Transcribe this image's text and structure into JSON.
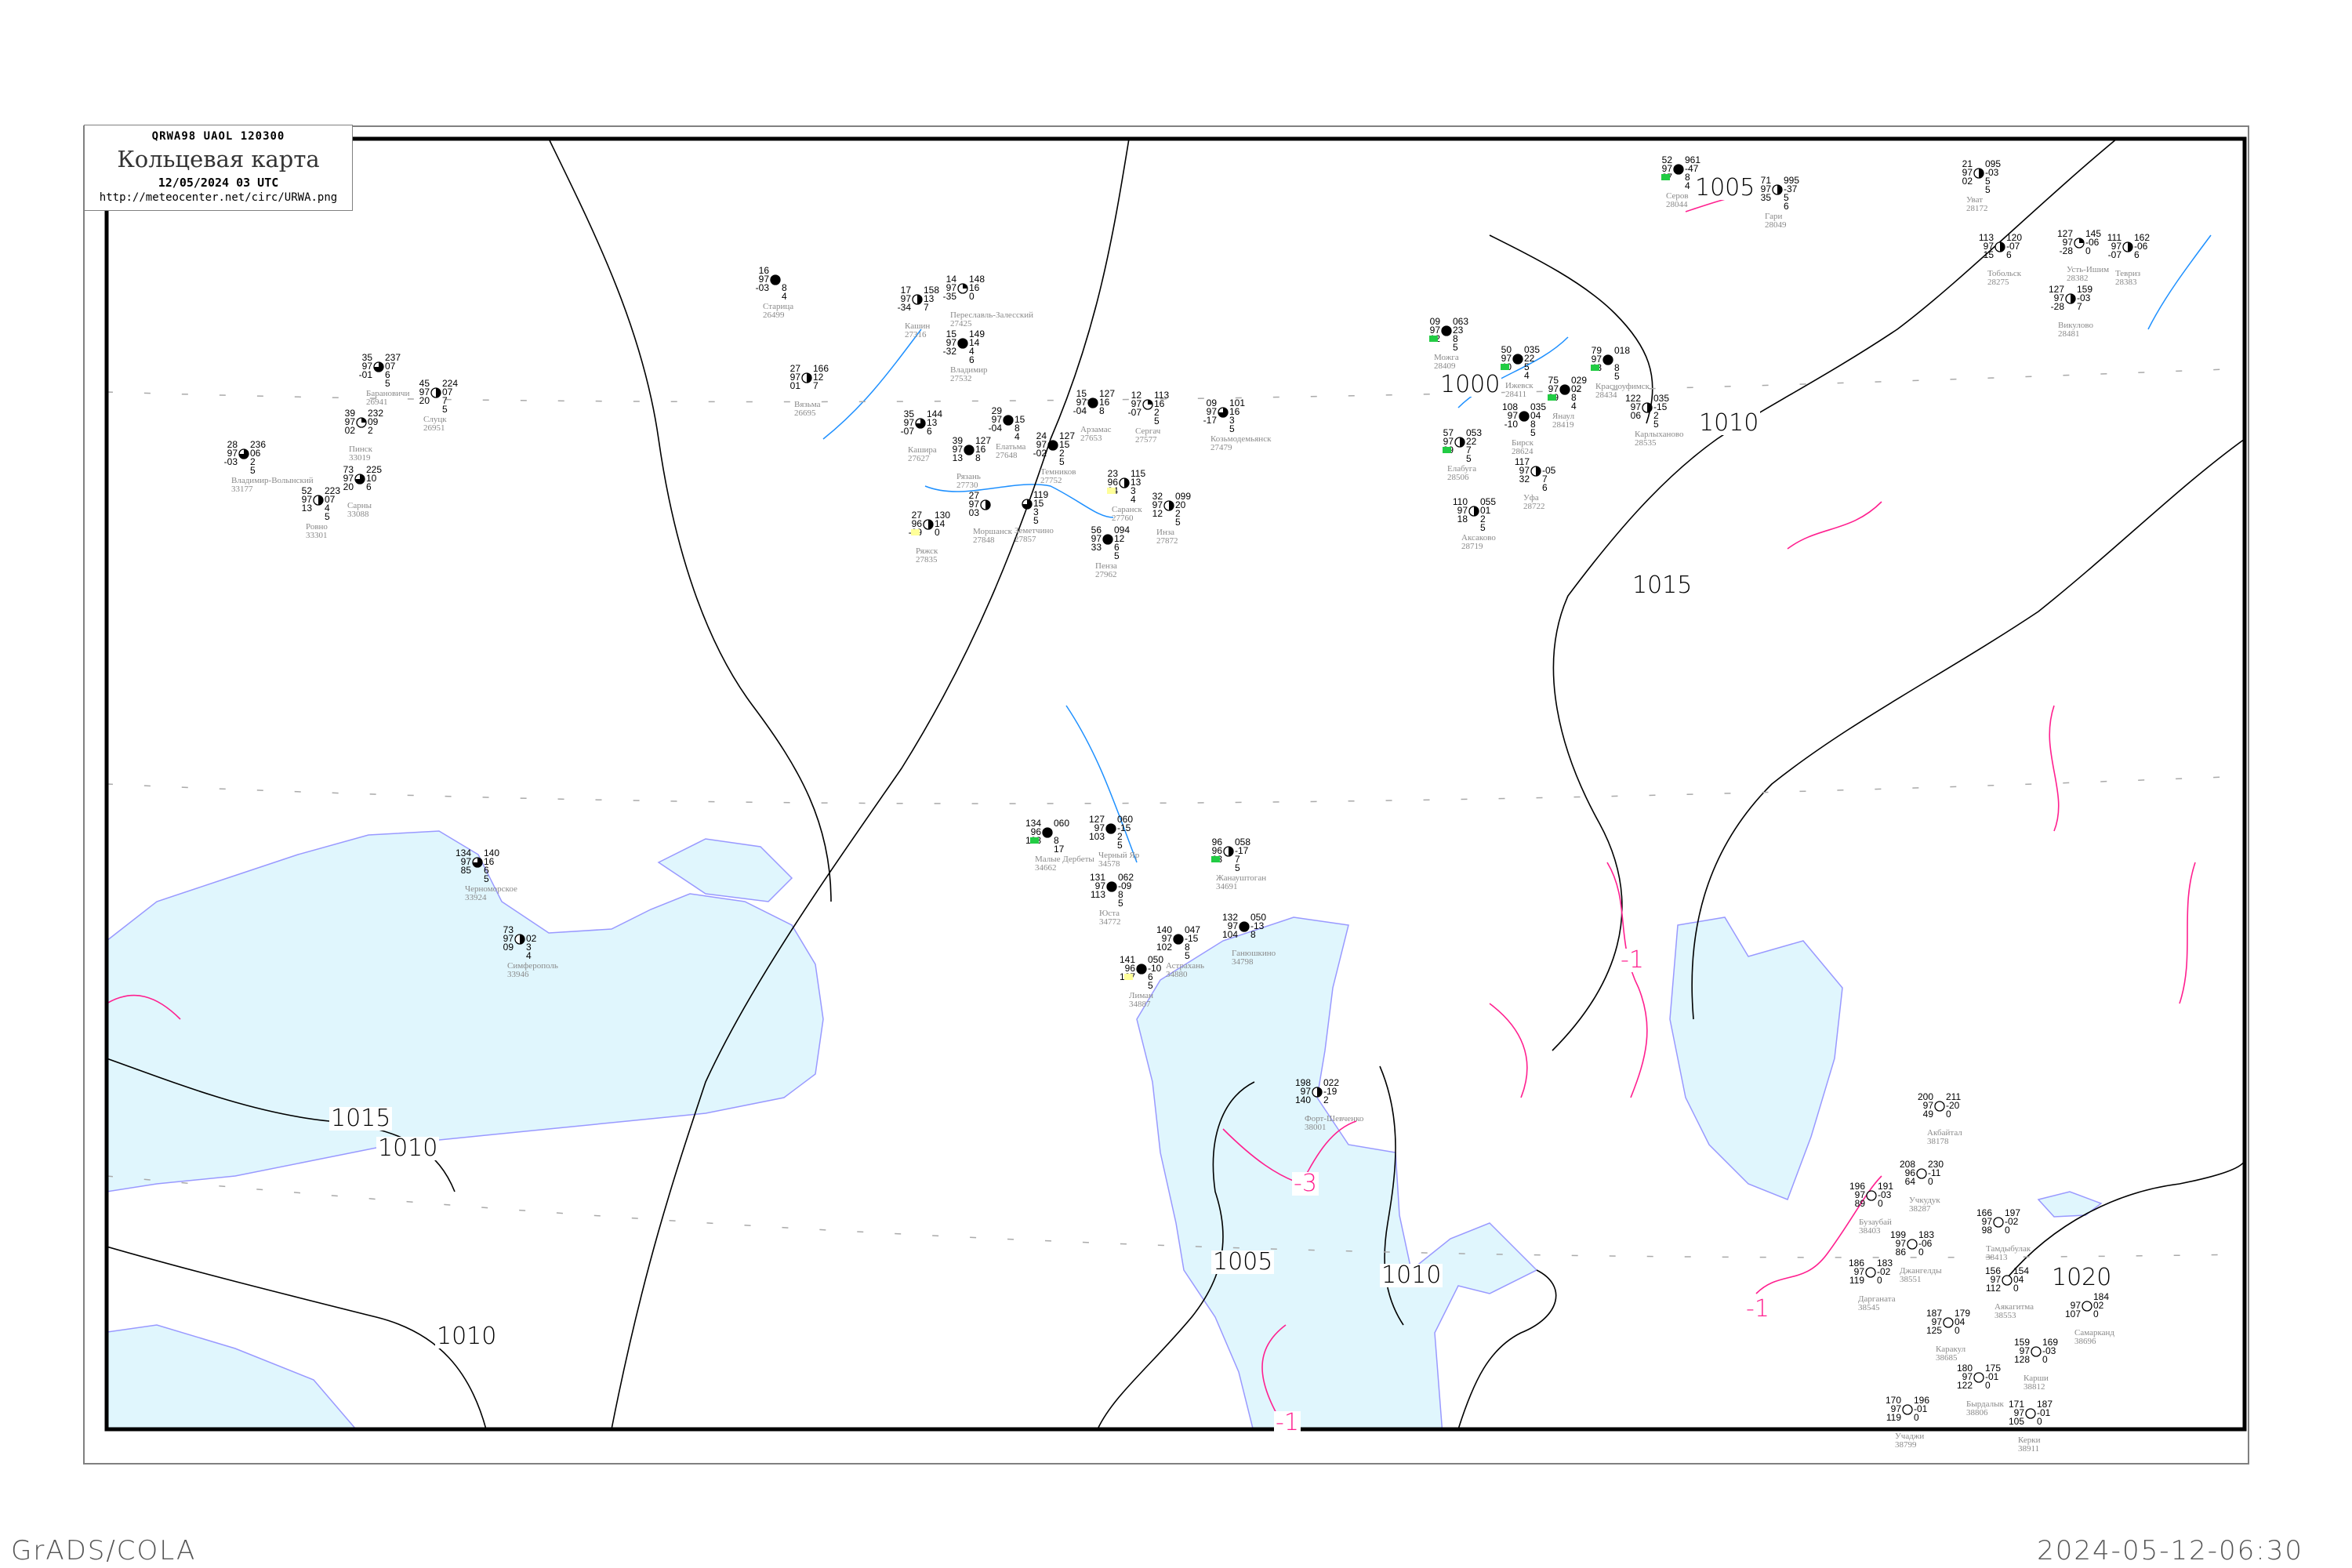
{
  "header": {
    "code": "QRWA98   UAOL   120300",
    "title": "Кольцевая карта",
    "date": "12/05/2024 03 UTC",
    "url": "http://meteocenter.net/circ/URWA.png"
  },
  "footer": {
    "left": "GrADS/COLA",
    "right": "2024-05-12-06:30"
  },
  "colors": {
    "sea": "#e0f6fd",
    "coast": "#9999ff",
    "river": "#1e90ff",
    "isobar": "#000000",
    "isallobar": "#ff1f8f",
    "station_name": "#8a8a8a",
    "precip_marker": "#22cc44",
    "fog_marker": "#ffff99"
  },
  "map": {
    "isobar_labels": [
      "1000",
      "1005",
      "1005",
      "1010",
      "1010",
      "1010",
      "1010",
      "1015",
      "1015",
      "1020"
    ],
    "isallobar_labels": [
      "-1",
      "-1",
      "-1",
      "-3"
    ]
  },
  "stations": [
    {
      "name": "Владимир",
      "id": "27532",
      "tl": "15",
      "ml": "97",
      "bl": "-32",
      "tr": "149",
      "mr": "14",
      "b1": "4",
      "b2": "6",
      "cover": 1
    },
    {
      "name": "Вязьма",
      "id": "26695",
      "tl": "27",
      "ml": "97",
      "bl": "01",
      "tr": "166",
      "mr": "12",
      "b1": "7",
      "b2": "",
      "cover": 0.5
    },
    {
      "name": "Старица",
      "id": "26499",
      "tl": "16",
      "ml": "97",
      "bl": "-03",
      "tr": "",
      "mr": "",
      "b1": "8",
      "b2": "4",
      "cover": 1
    },
    {
      "name": "Кашин",
      "id": "27316",
      "tl": "17",
      "ml": "97",
      "bl": "-34",
      "tr": "158",
      "mr": "13",
      "b1": "7",
      "b2": "",
      "cover": 0.5
    },
    {
      "name": "Переславль-Залесский",
      "id": "27425",
      "tl": "14",
      "ml": "97",
      "bl": "-35",
      "tr": "148",
      "mr": "16",
      "b1": "0",
      "b2": "",
      "cover": 0.25
    },
    {
      "name": "Кашира",
      "id": "27627",
      "tl": "35",
      "ml": "97",
      "bl": "-07",
      "tr": "144",
      "mr": "13",
      "b1": "6",
      "b2": "",
      "cover": 0.75
    },
    {
      "name": "Рязань",
      "id": "27730",
      "tl": "39",
      "ml": "97",
      "bl": "13",
      "tr": "127",
      "mr": "16",
      "b1": "8",
      "b2": "",
      "cover": 1
    },
    {
      "name": "Елатьма",
      "id": "27648",
      "tl": "29",
      "ml": "97",
      "bl": "-04",
      "tr": "",
      "mr": "15",
      "b1": "8",
      "b2": "4",
      "cover": 1
    },
    {
      "name": "Темников",
      "id": "27752",
      "tl": "24",
      "ml": "97",
      "bl": "-02",
      "tr": "127",
      "mr": "15",
      "b1": "2",
      "b2": "5",
      "cover": 1
    },
    {
      "name": "Арзамас",
      "id": "27653",
      "tl": "15",
      "ml": "97",
      "bl": "-04",
      "tr": "127",
      "mr": "16",
      "b1": "8",
      "b2": "",
      "cover": 1
    },
    {
      "name": "Сергач",
      "id": "27577",
      "tl": "12",
      "ml": "97",
      "bl": "-07",
      "tr": "113",
      "mr": "16",
      "b1": "2",
      "b2": "5",
      "cover": 0.25
    },
    {
      "name": "Козьмодемьянск",
      "id": "27479",
      "tl": "09",
      "ml": "97",
      "bl": "-17",
      "tr": "101",
      "mr": "16",
      "b1": "3",
      "b2": "5",
      "cover": 0.75
    },
    {
      "name": "Моршанск",
      "id": "27848",
      "tl": "27",
      "ml": "97",
      "bl": "03",
      "tr": "",
      "mr": "",
      "b1": "",
      "b2": "",
      "cover": 0.5
    },
    {
      "name": "Земетчино",
      "id": "27857",
      "tl": "",
      "ml": "",
      "bl": "",
      "tr": "119",
      "mr": "15",
      "b1": "3",
      "b2": "5",
      "cover": 0.75
    },
    {
      "name": "Саранск",
      "id": "27760",
      "tl": "23",
      "ml": "96",
      "bl": "04",
      "tr": "115",
      "mr": "13",
      "b1": "3",
      "b2": "4",
      "cover": 0.5,
      "marker": "fog"
    },
    {
      "name": "Инза",
      "id": "27872",
      "tl": "32",
      "ml": "97",
      "bl": "12",
      "tr": "099",
      "mr": "20",
      "b1": "2",
      "b2": "5",
      "cover": 0.5
    },
    {
      "name": "Пенза",
      "id": "27962",
      "tl": "56",
      "ml": "97",
      "bl": "33",
      "tr": "094",
      "mr": "12",
      "b1": "6",
      "b2": "5",
      "cover": 1
    },
    {
      "name": "Ряжск",
      "id": "27835",
      "tl": "27",
      "ml": "96",
      "bl": "-09",
      "tr": "130",
      "mr": "14",
      "b1": "0",
      "b2": "",
      "cover": 0.5,
      "marker": "fog"
    },
    {
      "name": "Уфа",
      "id": "28722",
      "tl": "117",
      "ml": "97",
      "bl": "32",
      "tr": "",
      "mr": "-05",
      "b1": "7",
      "b2": "6",
      "cover": 0.5
    },
    {
      "name": "Бирск",
      "id": "28624",
      "tl": "108",
      "ml": "97",
      "bl": "-10",
      "tr": "035",
      "mr": "04",
      "b1": "8",
      "b2": "5",
      "cover": 1
    },
    {
      "name": "Янаул",
      "id": "28419",
      "tl": "75",
      "ml": "97",
      "bl": "39",
      "tr": "029",
      "mr": "02",
      "b1": "8",
      "b2": "4",
      "cover": 1,
      "marker": "precip"
    },
    {
      "name": "Красноуфимск",
      "id": "28434",
      "tl": "79",
      "ml": "97",
      "bl": "43",
      "tr": "018",
      "mr": "",
      "b1": "8",
      "b2": "5",
      "cover": 1,
      "marker": "precip"
    },
    {
      "name": "Карлыханово",
      "id": "28535",
      "tl": "122",
      "ml": "97",
      "bl": "06",
      "tr": "035",
      "mr": "-15",
      "b1": "2",
      "b2": "5",
      "cover": 0.5
    },
    {
      "name": "Елабуга",
      "id": "28506",
      "tl": "57",
      "ml": "97",
      "bl": "39",
      "tr": "053",
      "mr": "22",
      "b1": "7",
      "b2": "5",
      "cover": 0.5,
      "marker": "precip"
    },
    {
      "name": "Можга",
      "id": "28409",
      "tl": "09",
      "ml": "97",
      "bl": "12",
      "tr": "063",
      "mr": "23",
      "b1": "8",
      "b2": "5",
      "cover": 1,
      "marker": "precip"
    },
    {
      "name": "Ижевск",
      "id": "28411",
      "tl": "50",
      "ml": "97",
      "bl": "40",
      "tr": "035",
      "mr": "22",
      "b1": "5",
      "b2": "4",
      "cover": 1,
      "marker": "precip"
    },
    {
      "name": "Аксаково",
      "id": "28719",
      "tl": "110",
      "ml": "97",
      "bl": "18",
      "tr": "055",
      "mr": "01",
      "b1": "2",
      "b2": "5",
      "cover": 0.5
    },
    {
      "name": "Серов",
      "id": "28044",
      "tl": "52",
      "ml": "97",
      "bl": "27",
      "tr": "961",
      "mr": "-47",
      "b1": "8",
      "b2": "4",
      "cover": 1,
      "marker": "precip"
    },
    {
      "name": "Гари",
      "id": "28049",
      "tl": "71",
      "ml": "97",
      "bl": "35",
      "tr": "995",
      "mr": "-37",
      "b1": "5",
      "b2": "6",
      "cover": 0.5
    },
    {
      "name": "Уват",
      "id": "28172",
      "tl": "21",
      "ml": "97",
      "bl": "02",
      "tr": "095",
      "mr": "-03",
      "b1": "5",
      "b2": "5",
      "cover": 0.5
    },
    {
      "name": "Тобольск",
      "id": "28275",
      "tl": "113",
      "ml": "97",
      "bl": "15",
      "tr": "120",
      "mr": "-07",
      "b1": "6",
      "b2": "",
      "cover": 0.5
    },
    {
      "name": "Усть-Ишим",
      "id": "28382",
      "tl": "127",
      "ml": "97",
      "bl": "-28",
      "tr": "145",
      "mr": "-06",
      "b1": "0",
      "b2": "",
      "cover": 0.25
    },
    {
      "name": "Тевриз",
      "id": "28383",
      "tl": "111",
      "ml": "97",
      "bl": "-07",
      "tr": "162",
      "mr": "-06",
      "b1": "6",
      "b2": "",
      "cover": 0.5
    },
    {
      "name": "Викулово",
      "id": "28481",
      "tl": "127",
      "ml": "97",
      "bl": "-28",
      "tr": "159",
      "mr": "-03",
      "b1": "7",
      "b2": "",
      "cover": 0.5
    },
    {
      "name": "Черноморское",
      "id": "33924",
      "tl": "134",
      "ml": "97",
      "bl": "85",
      "tr": "140",
      "mr": "16",
      "b1": "6",
      "b2": "5",
      "cover": 0.75
    },
    {
      "name": "Симферополь",
      "id": "33946",
      "tl": "73",
      "ml": "97",
      "bl": "09",
      "tr": "",
      "mr": "02",
      "b1": "3",
      "b2": "4",
      "cover": 0.5
    },
    {
      "name": "Форт-Шевченко",
      "id": "38001",
      "tl": "198",
      "ml": "97",
      "bl": "140",
      "tr": "022",
      "mr": "-19",
      "b1": "2",
      "b2": "",
      "cover": 0.5
    },
    {
      "name": "Акбайтал",
      "id": "38178",
      "tl": "200",
      "ml": "97",
      "bl": "49",
      "tr": "211",
      "mr": "-20",
      "b1": "0",
      "b2": "",
      "cover": 0
    },
    {
      "name": "Учкудук",
      "id": "38287",
      "tl": "208",
      "ml": "96",
      "bl": "64",
      "tr": "230",
      "mr": "-11",
      "b1": "0",
      "b2": "",
      "cover": 0
    },
    {
      "name": "Бузаубай",
      "id": "38403",
      "tl": "196",
      "ml": "97",
      "bl": "89",
      "tr": "191",
      "mr": "-03",
      "b1": "0",
      "b2": "",
      "cover": 0
    },
    {
      "name": "Джангелды",
      "id": "38551",
      "tl": "199",
      "ml": "97",
      "bl": "86",
      "tr": "183",
      "mr": "-06",
      "b1": "0",
      "b2": "",
      "cover": 0
    },
    {
      "name": "Тамдыбулак",
      "id": "38413",
      "tl": "166",
      "ml": "97",
      "bl": "98",
      "tr": "197",
      "mr": "-02",
      "b1": "0",
      "b2": "",
      "cover": 0
    },
    {
      "name": "Аякагитма",
      "id": "38553",
      "tl": "156",
      "ml": "97",
      "bl": "112",
      "tr": "154",
      "mr": "04",
      "b1": "0",
      "b2": "",
      "cover": 0
    },
    {
      "name": "Дарганата",
      "id": "38545",
      "tl": "186",
      "ml": "97",
      "bl": "119",
      "tr": "183",
      "mr": "-02",
      "b1": "0",
      "b2": "",
      "cover": 0
    },
    {
      "name": "Каракул",
      "id": "38685",
      "tl": "187",
      "ml": "97",
      "bl": "125",
      "tr": "179",
      "mr": "04",
      "b1": "0",
      "b2": "",
      "cover": 0
    },
    {
      "name": "Карши",
      "id": "38812",
      "tl": "159",
      "ml": "97",
      "bl": "128",
      "tr": "169",
      "mr": "-03",
      "b1": "0",
      "b2": "",
      "cover": 0
    },
    {
      "name": "Бырдалык",
      "id": "38806",
      "tl": "180",
      "ml": "97",
      "bl": "122",
      "tr": "175",
      "mr": "-01",
      "b1": "0",
      "b2": "",
      "cover": 0
    },
    {
      "name": "Учаджи",
      "id": "38799",
      "tl": "170",
      "ml": "97",
      "bl": "119",
      "tr": "196",
      "mr": "-01",
      "b1": "0",
      "b2": "",
      "cover": 0
    },
    {
      "name": "Керки",
      "id": "38911",
      "tl": "171",
      "ml": "97",
      "bl": "105",
      "tr": "187",
      "mr": "-01",
      "b1": "0",
      "b2": "",
      "cover": 0
    },
    {
      "name": "Самарканд",
      "id": "38696",
      "tl": "",
      "ml": "97",
      "bl": "107",
      "tr": "184",
      "mr": "02",
      "b1": "0",
      "b2": "",
      "cover": 0
    },
    {
      "name": "Барановичи",
      "id": "26941",
      "tl": "35",
      "ml": "97",
      "bl": "-01",
      "tr": "237",
      "mr": "07",
      "b1": "6",
      "b2": "5",
      "cover": 0.75
    },
    {
      "name": "Слуцк",
      "id": "26951",
      "tl": "45",
      "ml": "97",
      "bl": "20",
      "tr": "224",
      "mr": "07",
      "b1": "7",
      "b2": "5",
      "cover": 0.5
    },
    {
      "name": "Пинск",
      "id": "33019",
      "tl": "39",
      "ml": "97",
      "bl": "02",
      "tr": "232",
      "mr": "09",
      "b1": "2",
      "b2": "",
      "cover": 0.25
    },
    {
      "name": "Сарны",
      "id": "33088",
      "tl": "73",
      "ml": "97",
      "bl": "20",
      "tr": "225",
      "mr": "10",
      "b1": "6",
      "b2": "",
      "cover": 0.75
    },
    {
      "name": "Ровно",
      "id": "33301",
      "tl": "52",
      "ml": "97",
      "bl": "13",
      "tr": "223",
      "mr": "07",
      "b1": "4",
      "b2": "5",
      "cover": 0.5
    },
    {
      "name": "Владимир-Волынский",
      "id": "33177",
      "tl": "28",
      "ml": "97",
      "bl": "-03",
      "tr": "236",
      "mr": "06",
      "b1": "2",
      "b2": "5",
      "cover": 0.75
    },
    {
      "name": "Малые Дербеты",
      "id": "34662",
      "tl": "134",
      "ml": "96",
      "bl": "123",
      "tr": "060",
      "mr": "",
      "b1": "8",
      "b2": "17",
      "cover": 1,
      "marker": "precip"
    },
    {
      "name": "Черный Яр",
      "id": "34578",
      "tl": "127",
      "ml": "97",
      "bl": "103",
      "tr": "060",
      "mr": "-15",
      "b1": "2",
      "b2": "5",
      "cover": 1
    },
    {
      "name": "Юста",
      "id": "34772",
      "tl": "131",
      "ml": "97",
      "bl": "113",
      "tr": "062",
      "mr": "-09",
      "b1": "8",
      "b2": "5",
      "cover": 1
    },
    {
      "name": "Жанауштоган",
      "id": "34691",
      "tl": "96",
      "ml": "96",
      "bl": "63",
      "tr": "058",
      "mr": "-17",
      "b1": "7",
      "b2": "5",
      "cover": 0.5,
      "marker": "precip"
    },
    {
      "name": "Астрахань",
      "id": "34880",
      "tl": "140",
      "ml": "97",
      "bl": "102",
      "tr": "047",
      "mr": "-15",
      "b1": "8",
      "b2": "5",
      "cover": 1
    },
    {
      "name": "Ганюшкино",
      "id": "34798",
      "tl": "132",
      "ml": "97",
      "bl": "104",
      "tr": "050",
      "mr": "-13",
      "b1": "8",
      "b2": "",
      "cover": 1
    },
    {
      "name": "Лиман",
      "id": "34887",
      "tl": "141",
      "ml": "96",
      "bl": "127",
      "tr": "050",
      "mr": "-10",
      "b1": "6",
      "b2": "5",
      "cover": 1,
      "marker": "fog"
    }
  ]
}
